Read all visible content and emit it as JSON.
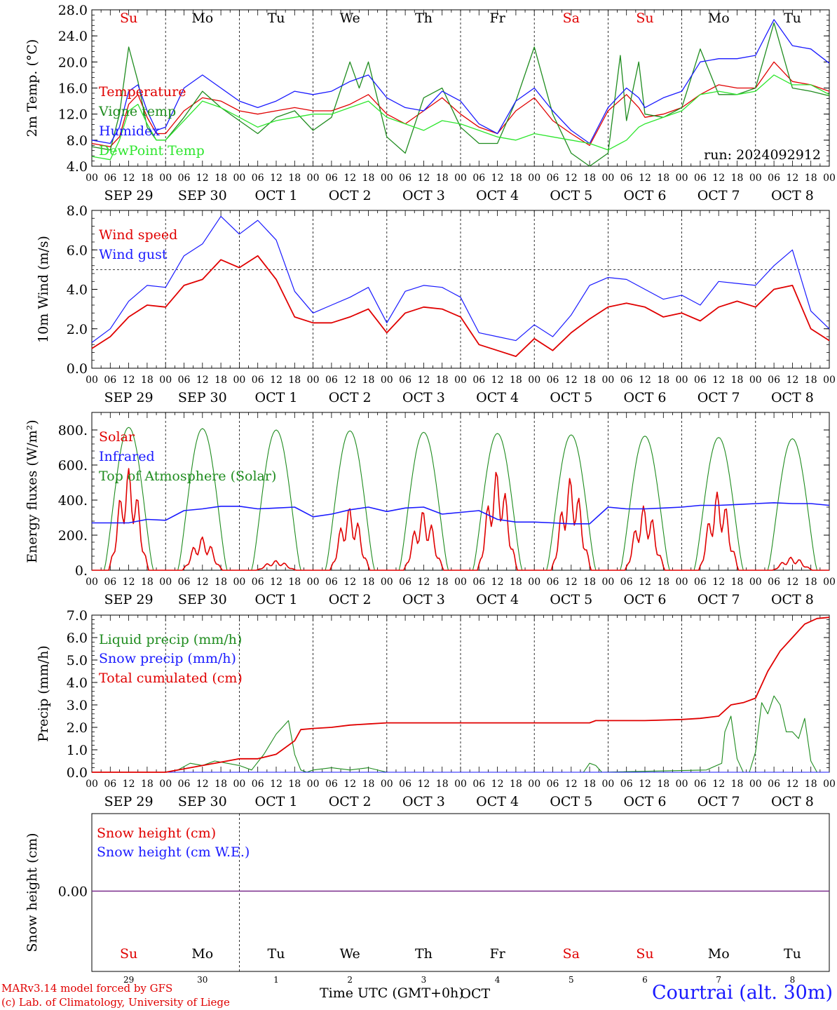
{
  "chart_data": [
    {
      "type": "line",
      "ylabel": "2m Temp. (°C)",
      "ylim": [
        4,
        28
      ],
      "yticks": [
        "4.0",
        "8.0",
        "12.0",
        "16.0",
        "20.0",
        "24.0",
        "28.0"
      ],
      "xrange_hours": [
        0,
        240
      ],
      "annotation": "run: 2024092912",
      "day_names": [
        {
          "label": "Su",
          "color": "#e00000"
        },
        {
          "label": "Mo",
          "color": "#000000"
        },
        {
          "label": "Tu",
          "color": "#000000"
        },
        {
          "label": "We",
          "color": "#000000"
        },
        {
          "label": "Th",
          "color": "#000000"
        },
        {
          "label": "Fr",
          "color": "#000000"
        },
        {
          "label": "Sa",
          "color": "#e00000"
        },
        {
          "label": "Su",
          "color": "#e00000"
        },
        {
          "label": "Mo",
          "color": "#000000"
        },
        {
          "label": "Tu",
          "color": "#000000"
        }
      ],
      "series": [
        {
          "name": "Temperature",
          "color": "#e00000",
          "x": [
            0,
            6,
            9,
            12,
            15,
            18,
            21,
            24,
            30,
            36,
            42,
            48,
            54,
            60,
            66,
            72,
            78,
            84,
            90,
            96,
            102,
            108,
            114,
            120,
            126,
            132,
            138,
            144,
            150,
            156,
            162,
            168,
            174,
            178,
            180,
            186,
            192,
            198,
            204,
            210,
            216,
            222,
            228,
            234,
            240
          ],
          "values": [
            7.5,
            7,
            8.5,
            13.5,
            15,
            11.5,
            9,
            9,
            12.5,
            14.5,
            14,
            12.5,
            12,
            12.5,
            13,
            12.5,
            12.5,
            13.5,
            15,
            12,
            10.5,
            12.5,
            14.5,
            12,
            10,
            9,
            12.5,
            14.5,
            11,
            9,
            7.2,
            12.5,
            15,
            13,
            11.5,
            12,
            13,
            15,
            16.5,
            16,
            16,
            20,
            17,
            16.5,
            15.5
          ]
        },
        {
          "name": "Vigne temp",
          "color": "#1f8c1f",
          "x": [
            0,
            6,
            9,
            12,
            15,
            18,
            21,
            24,
            30,
            36,
            42,
            48,
            54,
            60,
            66,
            72,
            78,
            84,
            87,
            90,
            96,
            102,
            108,
            114,
            120,
            126,
            132,
            138,
            144,
            150,
            156,
            162,
            168,
            172,
            174,
            178,
            180,
            186,
            192,
            198,
            204,
            210,
            216,
            222,
            228,
            234,
            240
          ],
          "values": [
            7,
            6.5,
            12,
            22.3,
            17,
            10,
            8,
            8,
            11.5,
            15.5,
            13,
            11,
            9,
            11.5,
            12.5,
            9.5,
            11.5,
            20,
            16,
            20,
            8.5,
            6,
            14.5,
            16,
            10,
            7.5,
            7.5,
            14,
            22.3,
            12,
            6,
            4,
            6,
            21,
            11,
            20,
            12,
            11.5,
            13,
            22,
            15,
            15,
            16,
            26,
            16,
            15.5,
            14.8
          ]
        },
        {
          "name": "Humidex",
          "color": "#1a1aff",
          "x": [
            0,
            6,
            9,
            12,
            15,
            18,
            21,
            24,
            30,
            36,
            42,
            48,
            54,
            60,
            66,
            72,
            78,
            84,
            90,
            96,
            102,
            108,
            114,
            120,
            126,
            132,
            138,
            144,
            150,
            156,
            162,
            168,
            174,
            178,
            180,
            186,
            192,
            198,
            204,
            210,
            216,
            222,
            228,
            234,
            240
          ],
          "values": [
            8,
            7.5,
            10,
            15.5,
            16.5,
            12.5,
            9.5,
            10,
            16,
            18,
            16,
            14,
            13,
            14,
            15.5,
            15,
            15.5,
            17,
            18,
            14.5,
            13,
            12.5,
            15.5,
            14,
            10.5,
            9,
            14,
            16,
            12.5,
            9.5,
            7.5,
            13,
            16,
            14.5,
            13,
            14.5,
            15.5,
            20,
            20.5,
            20.5,
            21,
            26.5,
            22.5,
            22,
            19.8
          ]
        },
        {
          "name": "DewPoint Temp",
          "color": "#2ee62e",
          "x": [
            0,
            6,
            9,
            12,
            15,
            18,
            21,
            24,
            30,
            36,
            42,
            48,
            54,
            60,
            66,
            72,
            78,
            84,
            90,
            96,
            102,
            108,
            114,
            120,
            126,
            132,
            138,
            144,
            150,
            156,
            162,
            168,
            174,
            178,
            180,
            186,
            192,
            198,
            204,
            210,
            216,
            222,
            228,
            234,
            240
          ],
          "values": [
            5.5,
            5,
            8,
            12.5,
            13.5,
            10.5,
            8,
            8,
            11,
            14,
            13,
            11.5,
            10,
            11,
            11.5,
            12,
            12,
            13,
            14,
            11.5,
            10.5,
            9.5,
            11,
            10.5,
            9.5,
            8.5,
            8,
            9,
            8.5,
            8,
            7.5,
            6.5,
            8,
            10,
            10.5,
            11.5,
            12.5,
            15,
            15.5,
            15,
            15.5,
            18,
            16.5,
            16.5,
            15
          ]
        }
      ]
    },
    {
      "type": "line",
      "ylabel": "10m Wind (m/s)",
      "ylim": [
        0,
        8
      ],
      "yticks": [
        "0.0",
        "2.0",
        "4.0",
        "6.0",
        "8.0"
      ],
      "xrange_hours": [
        0,
        240
      ],
      "reference_line": 5,
      "series": [
        {
          "name": "Wind speed",
          "color": "#e00000",
          "x": [
            0,
            6,
            12,
            18,
            24,
            30,
            36,
            42,
            48,
            54,
            60,
            66,
            72,
            78,
            84,
            90,
            96,
            102,
            108,
            114,
            120,
            126,
            132,
            138,
            144,
            150,
            156,
            162,
            168,
            174,
            180,
            186,
            192,
            198,
            204,
            210,
            216,
            222,
            228,
            234,
            240
          ],
          "values": [
            1,
            1.6,
            2.6,
            3.2,
            3.1,
            4.2,
            4.5,
            5.5,
            5.1,
            5.7,
            4.5,
            2.6,
            2.3,
            2.3,
            2.6,
            3,
            1.8,
            2.8,
            3.1,
            3,
            2.6,
            1.2,
            0.9,
            0.6,
            1.5,
            0.9,
            1.8,
            2.5,
            3.1,
            3.3,
            3.1,
            2.6,
            2.8,
            2.4,
            3.1,
            3.4,
            3.1,
            4,
            4.2,
            2,
            1.4
          ]
        },
        {
          "name": "Wind gust",
          "color": "#1a1aff",
          "x": [
            0,
            6,
            12,
            18,
            24,
            30,
            36,
            42,
            48,
            54,
            60,
            66,
            72,
            78,
            84,
            90,
            96,
            102,
            108,
            114,
            120,
            126,
            132,
            138,
            144,
            150,
            156,
            162,
            168,
            174,
            180,
            186,
            192,
            198,
            204,
            210,
            216,
            222,
            228,
            234,
            240
          ],
          "values": [
            1.3,
            2,
            3.4,
            4.2,
            4.1,
            5.7,
            6.3,
            7.7,
            6.8,
            7.5,
            6.5,
            3.9,
            2.8,
            3.2,
            3.6,
            4.1,
            2.3,
            3.9,
            4.2,
            4.1,
            3.6,
            1.8,
            1.6,
            1.4,
            2.2,
            1.6,
            2.7,
            4.2,
            4.6,
            4.5,
            4,
            3.5,
            3.7,
            3.2,
            4.4,
            4.3,
            4.2,
            5.2,
            6,
            2.9,
            2
          ]
        }
      ]
    },
    {
      "type": "line",
      "ylabel": "Energy fluxes (W/m²)",
      "ylim": [
        0,
        900
      ],
      "yticks": [
        "0.",
        "200.",
        "400.",
        "600.",
        "800."
      ],
      "xrange_hours": [
        0,
        240
      ],
      "series": [
        {
          "name": "Solar",
          "color": "#e00000",
          "day_peaks": [
            580,
            190,
            55,
            360,
            340,
            570,
            530,
            370,
            450,
            75
          ]
        },
        {
          "name": "Infrared",
          "color": "#1a1aff",
          "x": [
            0,
            12,
            18,
            24,
            30,
            36,
            42,
            48,
            54,
            60,
            66,
            72,
            78,
            84,
            90,
            96,
            102,
            108,
            114,
            120,
            126,
            132,
            138,
            144,
            150,
            156,
            162,
            168,
            174,
            180,
            186,
            192,
            198,
            204,
            210,
            216,
            222,
            228,
            234,
            240
          ],
          "values": [
            270,
            270,
            290,
            285,
            340,
            350,
            365,
            365,
            350,
            355,
            360,
            305,
            320,
            345,
            360,
            335,
            355,
            360,
            320,
            330,
            340,
            290,
            275,
            275,
            270,
            265,
            265,
            360,
            350,
            350,
            355,
            360,
            370,
            370,
            375,
            380,
            385,
            380,
            380,
            370
          ]
        },
        {
          "name": "Top of Atmosphere (Solar)",
          "color": "#1f8c1f",
          "day_peaks": [
            815,
            808,
            800,
            795,
            787,
            780,
            772,
            765,
            757,
            750
          ]
        }
      ]
    },
    {
      "type": "line",
      "ylabel": "Precip (mm/h)",
      "ylim": [
        0,
        7
      ],
      "yticks": [
        "0.0",
        "1.0",
        "2.0",
        "3.0",
        "4.0",
        "5.0",
        "6.0",
        "7.0"
      ],
      "xrange_hours": [
        0,
        240
      ],
      "series": [
        {
          "name": "Liquid precip (mm/h)",
          "color": "#1f8c1f",
          "x": [
            0,
            24,
            28,
            32,
            36,
            40,
            44,
            48,
            52,
            56,
            60,
            64,
            66,
            68,
            70,
            72,
            78,
            84,
            90,
            96,
            100,
            160,
            162,
            164,
            166,
            200,
            205,
            206,
            208,
            210,
            212,
            214,
            216,
            218,
            220,
            222,
            224,
            226,
            228,
            230,
            232,
            234,
            236,
            240
          ],
          "values": [
            0,
            0,
            0.1,
            0.4,
            0.3,
            0.5,
            0.4,
            0.3,
            0.1,
            0.8,
            1.7,
            2.3,
            0.8,
            0.1,
            0,
            0.1,
            0.2,
            0.1,
            0.2,
            0,
            0,
            0,
            0.4,
            0.3,
            0,
            0.1,
            0.4,
            1.8,
            2.5,
            0.6,
            0,
            0,
            0.9,
            3.1,
            2.6,
            3.4,
            3,
            1.8,
            1.8,
            1.5,
            2.4,
            0.5,
            0,
            0
          ]
        },
        {
          "name": "Snow precip (mm/h)",
          "color": "#1a1aff",
          "x": [
            0,
            240
          ],
          "values": [
            0,
            0
          ]
        },
        {
          "name": "Total cumulated (cm)",
          "color": "#e00000",
          "x": [
            0,
            24,
            36,
            44,
            48,
            54,
            60,
            66,
            68,
            72,
            78,
            84,
            90,
            96,
            120,
            150,
            162,
            164,
            168,
            180,
            192,
            198,
            204,
            208,
            212,
            216,
            220,
            224,
            228,
            232,
            236,
            240
          ],
          "values": [
            0,
            0,
            0.3,
            0.5,
            0.6,
            0.6,
            0.8,
            1.4,
            1.9,
            1.95,
            2,
            2.1,
            2.15,
            2.2,
            2.2,
            2.2,
            2.2,
            2.3,
            2.3,
            2.3,
            2.35,
            2.4,
            2.5,
            3.0,
            3.1,
            3.3,
            4.5,
            5.4,
            6,
            6.6,
            6.85,
            6.9
          ]
        }
      ]
    },
    {
      "type": "line",
      "ylabel": "Snow height (cm)",
      "ytick": "0.00",
      "xrange_hours": [
        0,
        240
      ],
      "series": [
        {
          "name": "Snow height (cm)",
          "color": "#e00000",
          "x": [
            0,
            240
          ],
          "values": [
            0,
            0
          ]
        },
        {
          "name": "Snow height (cm W.E.)",
          "color": "#1a1aff",
          "x": [
            0,
            240
          ],
          "values": [
            0,
            0
          ]
        }
      ],
      "day_names": [
        {
          "label": "Su",
          "color": "#e00000"
        },
        {
          "label": "Mo",
          "color": "#000000"
        },
        {
          "label": "Tu",
          "color": "#000000"
        },
        {
          "label": "We",
          "color": "#000000"
        },
        {
          "label": "Th",
          "color": "#000000"
        },
        {
          "label": "Fr",
          "color": "#000000"
        },
        {
          "label": "Sa",
          "color": "#e00000"
        },
        {
          "label": "Su",
          "color": "#e00000"
        },
        {
          "label": "Mo",
          "color": "#000000"
        },
        {
          "label": "Tu",
          "color": "#000000"
        }
      ],
      "day_numbers": [
        "29",
        "30",
        "1",
        "2",
        "3",
        "4",
        "5",
        "6",
        "7",
        "8"
      ],
      "month_label": "OCT"
    }
  ],
  "x_axis": {
    "hour_labels": [
      "00",
      "06",
      "12",
      "18"
    ],
    "end_label": "00",
    "date_labels": [
      "SEP 29",
      "SEP 30",
      "OCT  1",
      "OCT  2",
      "OCT  3",
      "OCT  4",
      "OCT  5",
      "OCT  6",
      "OCT  7",
      "OCT  8"
    ]
  },
  "footer": {
    "credit_line1": "MARv3.14 model forced by GFS",
    "credit_line2": "(c) Lab. of Climatology, University of Liege",
    "time_label": "Time UTC (GMT+0h)",
    "station": "Courtrai (alt. 30m)"
  }
}
